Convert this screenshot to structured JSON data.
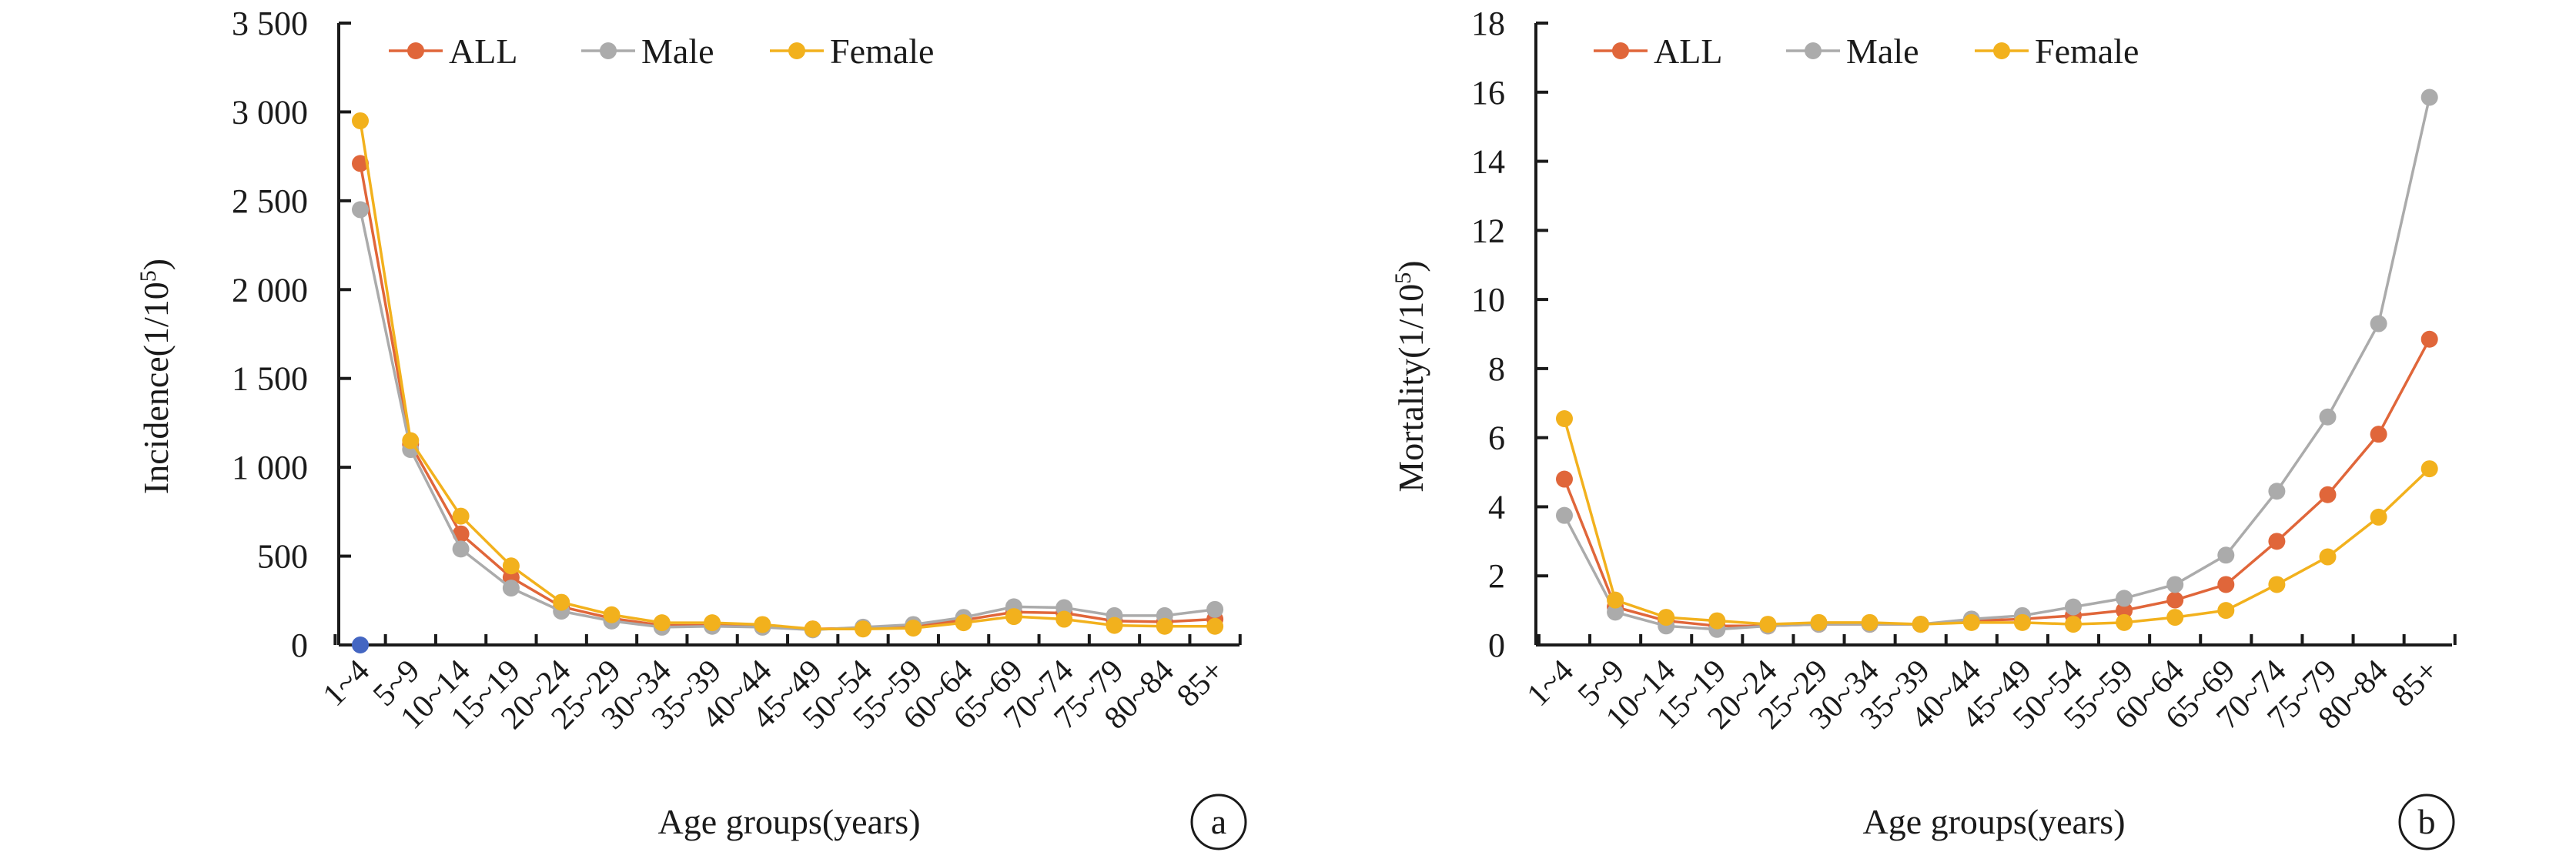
{
  "colors": {
    "ALL": "#E0663A",
    "Male": "#ABABAB",
    "Female": "#F2B11D",
    "highlight": "#4466C2"
  },
  "chart_data": [
    {
      "type": "line",
      "panel_label": "a",
      "ylabel": "Incidence",
      "ylabel_unit": "(1/10",
      "ylabel_unit_sup": "5",
      "ylabel_unit_close": ")",
      "xlabel": "Age groups(years)",
      "legend_position": "top-left",
      "grid": false,
      "ylim": [
        0,
        3500
      ],
      "yticks": [
        0,
        500,
        1000,
        1500,
        2000,
        2500,
        3000,
        3500
      ],
      "ytick_labels": [
        "0",
        "500",
        "1 000",
        "1 500",
        "2 000",
        "2 500",
        "3 000",
        "3 500"
      ],
      "categories": [
        "1~4",
        "5~9",
        "10~14",
        "15~19",
        "20~24",
        "25~29",
        "30~34",
        "35~39",
        "40~44",
        "45~49",
        "50~54",
        "55~59",
        "60~64",
        "65~69",
        "70~74",
        "75~79",
        "80~84",
        "85+"
      ],
      "series": [
        {
          "name": "ALL",
          "values": [
            2710,
            1130,
            625,
            380,
            215,
            150,
            110,
            110,
            105,
            90,
            95,
            105,
            140,
            185,
            180,
            135,
            130,
            145
          ]
        },
        {
          "name": "Male",
          "values": [
            2450,
            1100,
            540,
            320,
            190,
            135,
            100,
            105,
            100,
            85,
            100,
            115,
            155,
            215,
            210,
            165,
            165,
            200
          ]
        },
        {
          "name": "Female",
          "values": [
            2950,
            1150,
            725,
            445,
            240,
            170,
            125,
            125,
            115,
            90,
            90,
            95,
            125,
            160,
            145,
            110,
            105,
            105
          ]
        }
      ],
      "extra_points": [
        {
          "category": "1~4",
          "value": 0
        }
      ]
    },
    {
      "type": "line",
      "panel_label": "b",
      "ylabel": "Mortality",
      "ylabel_unit": "(1/10",
      "ylabel_unit_sup": "5",
      "ylabel_unit_close": ")",
      "xlabel": "Age groups(years)",
      "legend_position": "top-left",
      "grid": false,
      "ylim": [
        0,
        18
      ],
      "yticks": [
        0,
        2,
        4,
        6,
        8,
        10,
        12,
        14,
        16,
        18
      ],
      "ytick_labels": [
        "0",
        "2",
        "4",
        "6",
        "8",
        "10",
        "12",
        "14",
        "16",
        "18"
      ],
      "categories": [
        "1~4",
        "5~9",
        "10~14",
        "15~19",
        "20~24",
        "25~29",
        "30~34",
        "35~39",
        "40~44",
        "45~49",
        "50~54",
        "55~59",
        "60~64",
        "65~69",
        "70~74",
        "75~79",
        "80~84",
        "85+"
      ],
      "series": [
        {
          "name": "ALL",
          "values": [
            4.8,
            1.1,
            0.7,
            0.55,
            0.55,
            0.6,
            0.6,
            0.6,
            0.7,
            0.75,
            0.85,
            1.0,
            1.3,
            1.75,
            3.0,
            4.35,
            6.1,
            8.85
          ]
        },
        {
          "name": "Male",
          "values": [
            3.75,
            0.95,
            0.55,
            0.45,
            0.55,
            0.6,
            0.6,
            0.6,
            0.75,
            0.85,
            1.1,
            1.35,
            1.75,
            2.6,
            4.45,
            6.6,
            9.3,
            15.85
          ]
        },
        {
          "name": "Female",
          "values": [
            6.55,
            1.3,
            0.8,
            0.7,
            0.6,
            0.65,
            0.65,
            0.6,
            0.65,
            0.65,
            0.6,
            0.65,
            0.8,
            1.0,
            1.75,
            2.55,
            3.7,
            5.1
          ]
        }
      ]
    }
  ]
}
